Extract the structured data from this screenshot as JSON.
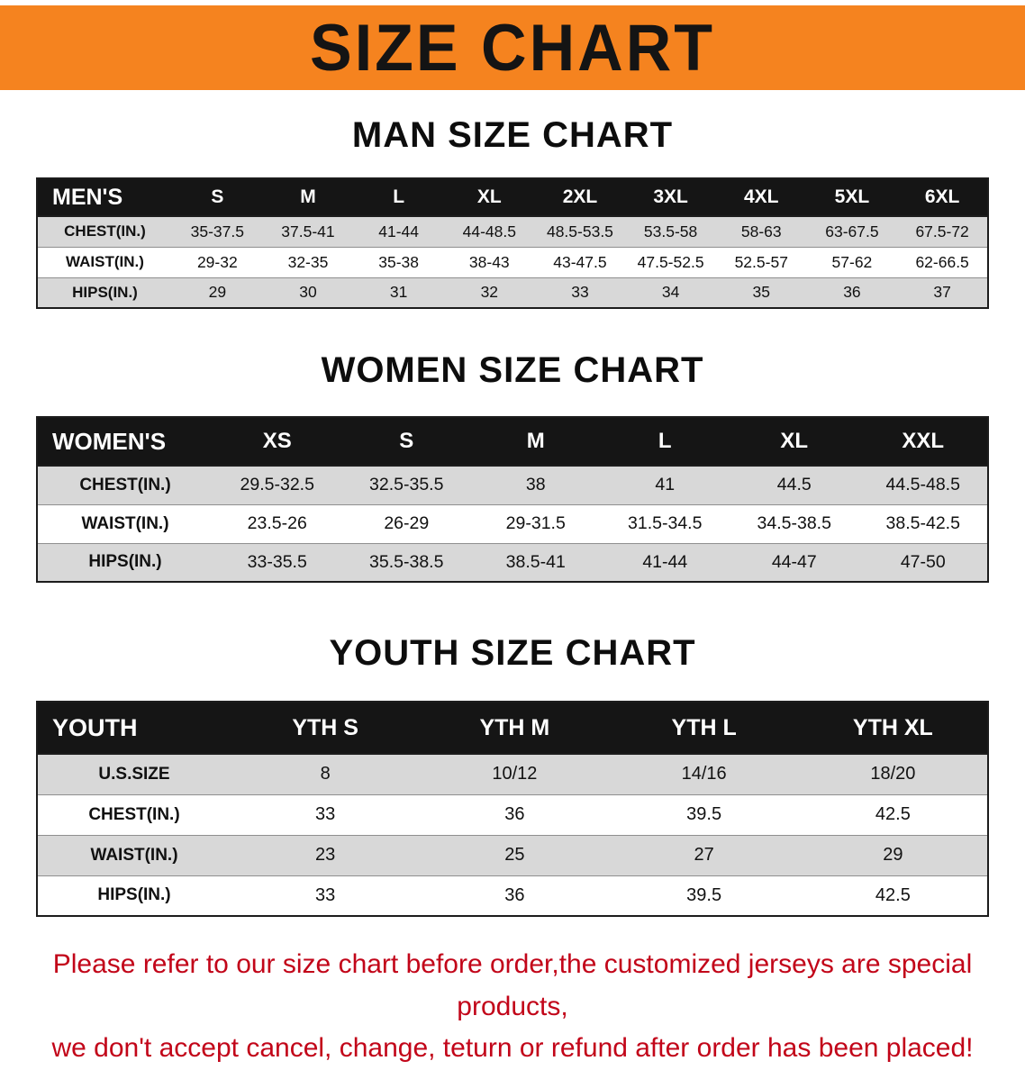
{
  "banner": {
    "title": "SIZE CHART",
    "bg_color": "#F5831F",
    "text_color": "#141414"
  },
  "colors": {
    "table_header_bg": "#151515",
    "table_header_text": "#FFFFFF",
    "row_alt_gray": "#D8D8D8",
    "note_red": "#C20519"
  },
  "chart_data": [
    {
      "type": "table",
      "title": "MAN SIZE CHART",
      "header": [
        "MEN'S",
        "S",
        "M",
        "L",
        "XL",
        "2XL",
        "3XL",
        "4XL",
        "5XL",
        "6XL"
      ],
      "rows": [
        [
          "CHEST(IN.)",
          "35-37.5",
          "37.5-41",
          "41-44",
          "44-48.5",
          "48.5-53.5",
          "53.5-58",
          "58-63",
          "63-67.5",
          "67.5-72"
        ],
        [
          "WAIST(IN.)",
          "29-32",
          "32-35",
          "35-38",
          "38-43",
          "43-47.5",
          "47.5-52.5",
          "52.5-57",
          "57-62",
          "62-66.5"
        ],
        [
          "HIPS(IN.)",
          "29",
          "30",
          "31",
          "32",
          "33",
          "34",
          "35",
          "36",
          "37"
        ]
      ]
    },
    {
      "type": "table",
      "title": "WOMEN SIZE CHART",
      "header": [
        "WOMEN'S",
        "XS",
        "S",
        "M",
        "L",
        "XL",
        "XXL"
      ],
      "rows": [
        [
          "CHEST(IN.)",
          "29.5-32.5",
          "32.5-35.5",
          "38",
          "41",
          "44.5",
          "44.5-48.5"
        ],
        [
          "WAIST(IN.)",
          "23.5-26",
          "26-29",
          "29-31.5",
          "31.5-34.5",
          "34.5-38.5",
          "38.5-42.5"
        ],
        [
          "HIPS(IN.)",
          "33-35.5",
          "35.5-38.5",
          "38.5-41",
          "41-44",
          "44-47",
          "47-50"
        ]
      ]
    },
    {
      "type": "table",
      "title": "YOUTH SIZE CHART",
      "header": [
        "YOUTH",
        "YTH S",
        "YTH M",
        "YTH L",
        "YTH XL"
      ],
      "rows": [
        [
          "U.S.SIZE",
          "8",
          "10/12",
          "14/16",
          "18/20"
        ],
        [
          "CHEST(IN.)",
          "33",
          "36",
          "39.5",
          "42.5"
        ],
        [
          "WAIST(IN.)",
          "23",
          "25",
          "27",
          "29"
        ],
        [
          "HIPS(IN.)",
          "33",
          "36",
          "39.5",
          "42.5"
        ]
      ]
    }
  ],
  "note": {
    "line1": "Please refer to our size chart before order,the customized jerseys are special products,",
    "line2": "we don't accept cancel, change, teturn or refund after order has been placed!"
  }
}
